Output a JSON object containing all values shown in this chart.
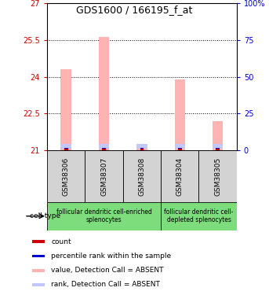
{
  "title": "GDS1600 / 166195_f_at",
  "samples": [
    "GSM38306",
    "GSM38307",
    "GSM38308",
    "GSM38304",
    "GSM38305"
  ],
  "values_absent": [
    24.3,
    25.6,
    21.2,
    23.9,
    22.2
  ],
  "ylim": [
    21,
    27
  ],
  "y_ticks": [
    21,
    22.5,
    24,
    25.5,
    27
  ],
  "y2_ticks": [
    0,
    25,
    50,
    75,
    100
  ],
  "ytick_labels": [
    "21",
    "22.5",
    "24",
    "25.5",
    "27"
  ],
  "y2tick_labels": [
    "0",
    "25",
    "50",
    "75",
    "100%"
  ],
  "left_color": "#cc0000",
  "right_color": "#0000cc",
  "bar_color_absent": "#ffb3b3",
  "rank_color_absent": "#c0c8ff",
  "count_color": "#cc0000",
  "percentile_color": "#0000cc",
  "bar_width": 0.28,
  "sample_box_color": "#d3d3d3",
  "dotted_line_values": [
    22.5,
    24.0,
    25.5
  ],
  "groups": [
    {
      "start": 0,
      "end": 2,
      "label": "follicular dendritic cell-enriched\nsplenocytes"
    },
    {
      "start": 3,
      "end": 4,
      "label": "follicular dendritic cell-\ndepleted splenocytes"
    }
  ],
  "group_color": "#7ddd7d",
  "legend_items": [
    {
      "label": "count",
      "color": "#cc0000"
    },
    {
      "label": "percentile rank within the sample",
      "color": "#0000cc"
    },
    {
      "label": "value, Detection Call = ABSENT",
      "color": "#ffb3b3"
    },
    {
      "label": "rank, Detection Call = ABSENT",
      "color": "#c0c8ff"
    }
  ]
}
